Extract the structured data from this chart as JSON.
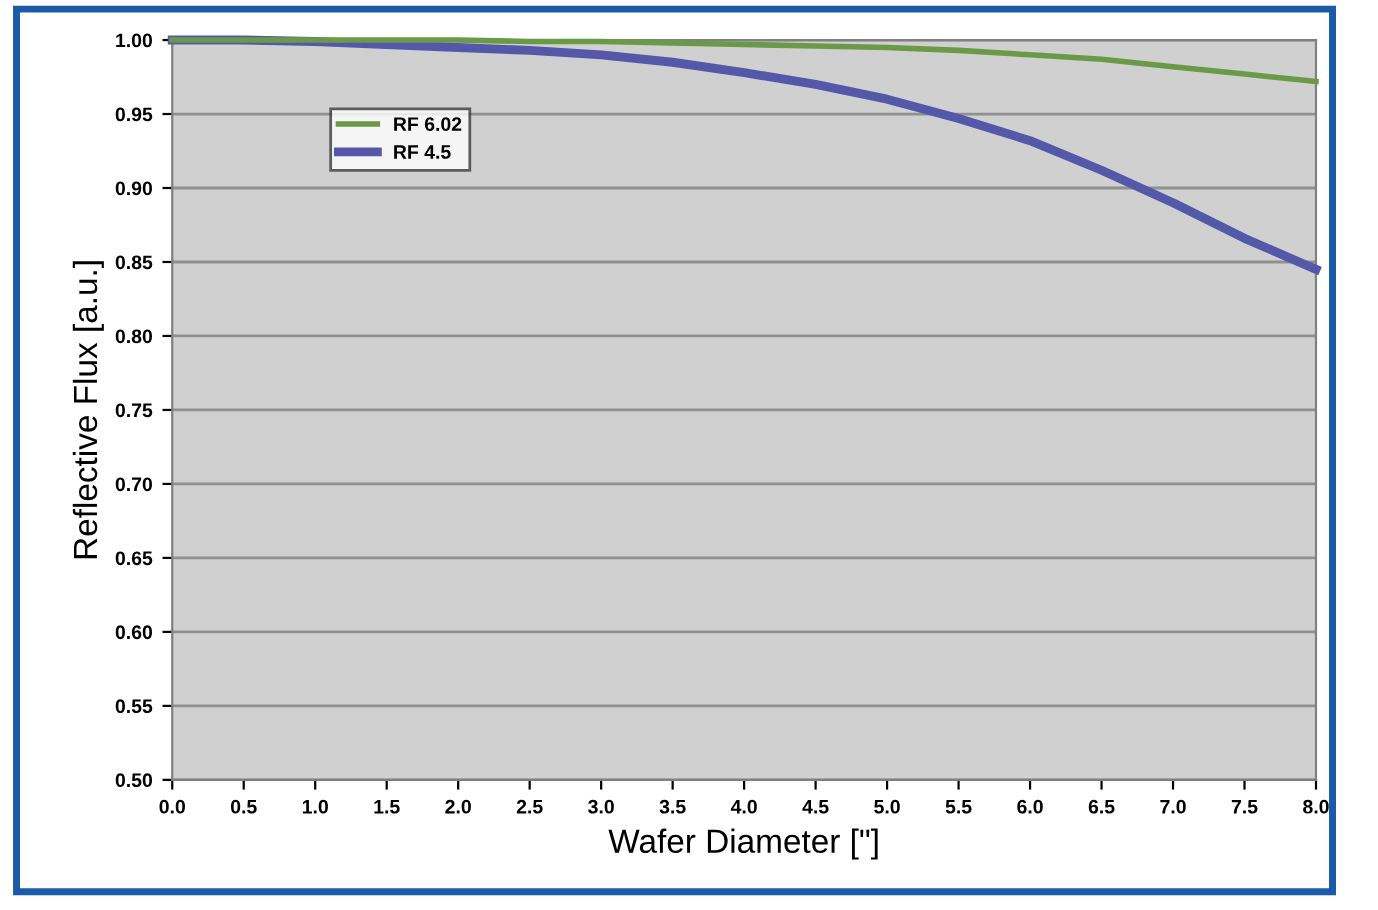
{
  "chart_data": {
    "type": "line",
    "xlabel": "Wafer Diameter [\"]",
    "ylabel": "Reflective Flux [a.u.]",
    "x": [
      0,
      0.5,
      1.0,
      1.5,
      2.0,
      2.5,
      3.0,
      3.5,
      4.0,
      4.5,
      5.0,
      5.5,
      6.0,
      6.5,
      7.0,
      7.5,
      8.0
    ],
    "series": [
      {
        "name": "RF 6.02",
        "color": "#6a9a48",
        "values": [
          1.0,
          1.0,
          1.0,
          1.0,
          1.0,
          0.999,
          0.999,
          0.998,
          0.997,
          0.996,
          0.995,
          0.993,
          0.99,
          0.987,
          0.982,
          0.977,
          0.972
        ]
      },
      {
        "name": "RF 4.5",
        "color": "#5558a8",
        "values": [
          1.0,
          1.0,
          0.999,
          0.997,
          0.995,
          0.993,
          0.99,
          0.985,
          0.978,
          0.97,
          0.96,
          0.947,
          0.932,
          0.912,
          0.89,
          0.866,
          0.845
        ]
      }
    ],
    "xlim": [
      0,
      8
    ],
    "xticks": [
      {
        "value": 0,
        "label": "0.0"
      },
      0.5,
      {
        "value": 1,
        "label": "1.0"
      },
      1.5,
      {
        "value": 2,
        "label": "2.0"
      },
      2.5,
      {
        "value": 3,
        "label": "3.0"
      },
      3.5,
      {
        "value": 4,
        "label": "4.0"
      },
      4.5,
      {
        "value": 5,
        "label": "5.0"
      },
      5.5,
      {
        "value": 6,
        "label": "6.0"
      },
      6.5,
      {
        "value": 7,
        "label": "7.0"
      },
      7.5,
      {
        "value": 8,
        "label": "8.0"
      }
    ],
    "ylim": [
      0.5,
      1.0
    ],
    "yticks": [
      {
        "value": 0.5,
        "label": "0.50"
      },
      0.55,
      {
        "value": 0.6,
        "label": "0.60"
      },
      0.65,
      {
        "value": 0.7,
        "label": "0.70"
      },
      0.75,
      {
        "value": 0.8,
        "label": "0.80"
      },
      0.85,
      {
        "value": 0.9,
        "label": "0.90"
      },
      0.95,
      {
        "value": 1.0,
        "label": "1.00"
      }
    ],
    "grid": "y",
    "legend": "top left",
    "marker": "none",
    "line_style": "solid"
  }
}
